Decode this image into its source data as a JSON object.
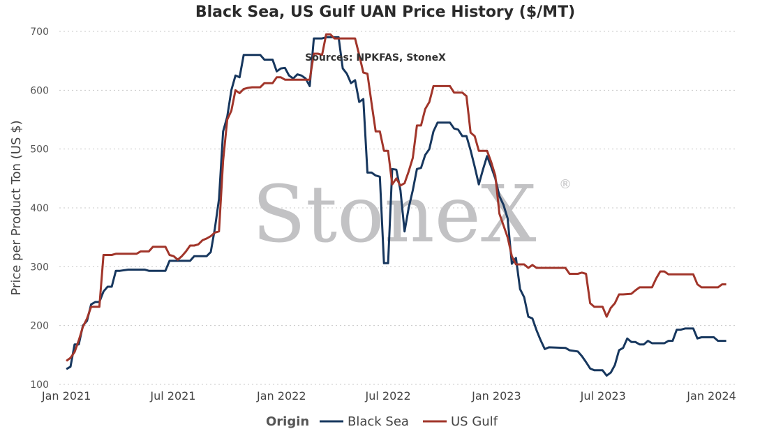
{
  "chart_data": {
    "type": "line",
    "title": "Black Sea, US Gulf UAN Price History ($/MT)",
    "subtitle": "Sources: NPKFAS, StoneX",
    "ylabel": "Price per Product Ton (US $)",
    "xlabel": "",
    "ylim": [
      100,
      700
    ],
    "yticks": [
      100,
      200,
      300,
      400,
      500,
      600,
      700
    ],
    "xlim": [
      "2020-12-20",
      "2024-02-12"
    ],
    "xticks": [
      {
        "date": "2021-01-01",
        "label": "Jan 2021"
      },
      {
        "date": "2021-07-01",
        "label": "Jul 2021"
      },
      {
        "date": "2022-01-01",
        "label": "Jan 2022"
      },
      {
        "date": "2022-07-01",
        "label": "Jul 2022"
      },
      {
        "date": "2023-01-01",
        "label": "Jan 2023"
      },
      {
        "date": "2023-07-01",
        "label": "Jul 2023"
      },
      {
        "date": "2024-01-01",
        "label": "Jan 2024"
      }
    ],
    "grid": "horizontal dotted",
    "legend_title": "Origin",
    "legend_position": "bottom",
    "watermark": "StoneX",
    "watermark_mark": "®",
    "series": [
      {
        "name": "Black Sea",
        "color": "#17375e",
        "points": [
          [
            "2021-01-01",
            126
          ],
          [
            "2021-01-08",
            130
          ],
          [
            "2021-01-15",
            168
          ],
          [
            "2021-01-22",
            168
          ],
          [
            "2021-01-29",
            200
          ],
          [
            "2021-02-05",
            208
          ],
          [
            "2021-02-12",
            236
          ],
          [
            "2021-02-19",
            240
          ],
          [
            "2021-02-26",
            240
          ],
          [
            "2021-03-05",
            258
          ],
          [
            "2021-03-12",
            266
          ],
          [
            "2021-03-19",
            266
          ],
          [
            "2021-03-26",
            293
          ],
          [
            "2021-04-02",
            293
          ],
          [
            "2021-04-16",
            295
          ],
          [
            "2021-05-14",
            295
          ],
          [
            "2021-05-21",
            293
          ],
          [
            "2021-06-18",
            293
          ],
          [
            "2021-06-25",
            310
          ],
          [
            "2021-07-02",
            310
          ],
          [
            "2021-07-09",
            310
          ],
          [
            "2021-07-30",
            310
          ],
          [
            "2021-08-06",
            318
          ],
          [
            "2021-08-27",
            318
          ],
          [
            "2021-09-03",
            325
          ],
          [
            "2021-09-10",
            365
          ],
          [
            "2021-09-17",
            415
          ],
          [
            "2021-09-24",
            530
          ],
          [
            "2021-10-01",
            555
          ],
          [
            "2021-10-08",
            600
          ],
          [
            "2021-10-15",
            625
          ],
          [
            "2021-10-22",
            622
          ],
          [
            "2021-10-29",
            660
          ],
          [
            "2021-11-26",
            660
          ],
          [
            "2021-12-03",
            652
          ],
          [
            "2021-12-17",
            652
          ],
          [
            "2021-12-24",
            632
          ],
          [
            "2021-12-31",
            637
          ],
          [
            "2022-01-07",
            638
          ],
          [
            "2022-01-14",
            625
          ],
          [
            "2022-01-21",
            620
          ],
          [
            "2022-01-28",
            627
          ],
          [
            "2022-02-04",
            625
          ],
          [
            "2022-02-11",
            620
          ],
          [
            "2022-02-18",
            607
          ],
          [
            "2022-02-25",
            688
          ],
          [
            "2022-03-11",
            688
          ],
          [
            "2022-03-18",
            690
          ],
          [
            "2022-04-08",
            690
          ],
          [
            "2022-04-15",
            637
          ],
          [
            "2022-04-22",
            628
          ],
          [
            "2022-04-29",
            612
          ],
          [
            "2022-05-06",
            617
          ],
          [
            "2022-05-13",
            580
          ],
          [
            "2022-05-20",
            585
          ],
          [
            "2022-05-27",
            460
          ],
          [
            "2022-06-03",
            460
          ],
          [
            "2022-06-10",
            455
          ],
          [
            "2022-06-17",
            453
          ],
          [
            "2022-06-24",
            306
          ],
          [
            "2022-07-01",
            306
          ],
          [
            "2022-07-08",
            466
          ],
          [
            "2022-07-15",
            465
          ],
          [
            "2022-07-22",
            430
          ],
          [
            "2022-07-29",
            360
          ],
          [
            "2022-08-05",
            400
          ],
          [
            "2022-08-12",
            430
          ],
          [
            "2022-08-19",
            466
          ],
          [
            "2022-08-26",
            468
          ],
          [
            "2022-09-02",
            490
          ],
          [
            "2022-09-09",
            500
          ],
          [
            "2022-09-16",
            530
          ],
          [
            "2022-09-23",
            545
          ],
          [
            "2022-10-14",
            545
          ],
          [
            "2022-10-21",
            535
          ],
          [
            "2022-10-28",
            533
          ],
          [
            "2022-11-04",
            522
          ],
          [
            "2022-11-11",
            522
          ],
          [
            "2022-11-18",
            498
          ],
          [
            "2022-11-25",
            470
          ],
          [
            "2022-12-02",
            440
          ],
          [
            "2022-12-09",
            465
          ],
          [
            "2022-12-16",
            488
          ],
          [
            "2022-12-23",
            470
          ],
          [
            "2022-12-30",
            450
          ],
          [
            "2023-01-06",
            420
          ],
          [
            "2023-01-13",
            405
          ],
          [
            "2023-01-20",
            382
          ],
          [
            "2023-01-27",
            305
          ],
          [
            "2023-02-03",
            315
          ],
          [
            "2023-02-10",
            262
          ],
          [
            "2023-02-17",
            248
          ],
          [
            "2023-02-24",
            215
          ],
          [
            "2023-03-03",
            212
          ],
          [
            "2023-03-10",
            192
          ],
          [
            "2023-03-17",
            175
          ],
          [
            "2023-03-24",
            160
          ],
          [
            "2023-03-31",
            163
          ],
          [
            "2023-04-28",
            162
          ],
          [
            "2023-05-05",
            158
          ],
          [
            "2023-05-19",
            156
          ],
          [
            "2023-05-26",
            148
          ],
          [
            "2023-06-02",
            138
          ],
          [
            "2023-06-09",
            127
          ],
          [
            "2023-06-16",
            124
          ],
          [
            "2023-06-30",
            124
          ],
          [
            "2023-07-07",
            115
          ],
          [
            "2023-07-14",
            120
          ],
          [
            "2023-07-21",
            133
          ],
          [
            "2023-07-28",
            158
          ],
          [
            "2023-08-04",
            162
          ],
          [
            "2023-08-11",
            178
          ],
          [
            "2023-08-18",
            172
          ],
          [
            "2023-08-25",
            172
          ],
          [
            "2023-09-01",
            168
          ],
          [
            "2023-09-08",
            168
          ],
          [
            "2023-09-15",
            174
          ],
          [
            "2023-09-22",
            170
          ],
          [
            "2023-10-06",
            170
          ],
          [
            "2023-10-13",
            170
          ],
          [
            "2023-10-20",
            174
          ],
          [
            "2023-10-27",
            174
          ],
          [
            "2023-11-03",
            193
          ],
          [
            "2023-11-10",
            193
          ],
          [
            "2023-11-17",
            195
          ],
          [
            "2023-12-01",
            195
          ],
          [
            "2023-12-08",
            178
          ],
          [
            "2023-12-15",
            180
          ],
          [
            "2024-01-05",
            180
          ],
          [
            "2024-01-12",
            174
          ],
          [
            "2024-01-26",
            174
          ]
        ]
      },
      {
        "name": "US Gulf",
        "color": "#a1352a",
        "points": [
          [
            "2021-01-01",
            140
          ],
          [
            "2021-01-08",
            145
          ],
          [
            "2021-01-15",
            155
          ],
          [
            "2021-01-22",
            175
          ],
          [
            "2021-01-29",
            198
          ],
          [
            "2021-02-05",
            212
          ],
          [
            "2021-02-12",
            232
          ],
          [
            "2021-02-26",
            232
          ],
          [
            "2021-03-05",
            320
          ],
          [
            "2021-03-19",
            320
          ],
          [
            "2021-03-26",
            322
          ],
          [
            "2021-04-30",
            322
          ],
          [
            "2021-05-07",
            326
          ],
          [
            "2021-05-21",
            326
          ],
          [
            "2021-05-28",
            334
          ],
          [
            "2021-06-18",
            334
          ],
          [
            "2021-06-25",
            320
          ],
          [
            "2021-07-02",
            318
          ],
          [
            "2021-07-09",
            312
          ],
          [
            "2021-07-16",
            318
          ],
          [
            "2021-07-23",
            326
          ],
          [
            "2021-07-30",
            336
          ],
          [
            "2021-08-06",
            336
          ],
          [
            "2021-08-13",
            338
          ],
          [
            "2021-08-20",
            345
          ],
          [
            "2021-08-27",
            348
          ],
          [
            "2021-09-03",
            352
          ],
          [
            "2021-09-10",
            358
          ],
          [
            "2021-09-17",
            360
          ],
          [
            "2021-09-24",
            480
          ],
          [
            "2021-10-01",
            550
          ],
          [
            "2021-10-08",
            565
          ],
          [
            "2021-10-15",
            600
          ],
          [
            "2021-10-22",
            595
          ],
          [
            "2021-10-29",
            602
          ],
          [
            "2021-11-05",
            604
          ],
          [
            "2021-11-12",
            605
          ],
          [
            "2021-11-26",
            605
          ],
          [
            "2021-12-03",
            612
          ],
          [
            "2021-12-10",
            612
          ],
          [
            "2021-12-17",
            612
          ],
          [
            "2021-12-24",
            622
          ],
          [
            "2021-12-31",
            622
          ],
          [
            "2022-01-07",
            618
          ],
          [
            "2022-02-18",
            618
          ],
          [
            "2022-02-25",
            662
          ],
          [
            "2022-03-04",
            662
          ],
          [
            "2022-03-11",
            660
          ],
          [
            "2022-03-18",
            695
          ],
          [
            "2022-03-25",
            695
          ],
          [
            "2022-04-01",
            688
          ],
          [
            "2022-05-06",
            688
          ],
          [
            "2022-05-13",
            660
          ],
          [
            "2022-05-20",
            630
          ],
          [
            "2022-05-27",
            628
          ],
          [
            "2022-06-03",
            578
          ],
          [
            "2022-06-10",
            530
          ],
          [
            "2022-06-17",
            530
          ],
          [
            "2022-06-24",
            497
          ],
          [
            "2022-07-01",
            497
          ],
          [
            "2022-07-08",
            440
          ],
          [
            "2022-07-15",
            450
          ],
          [
            "2022-07-22",
            438
          ],
          [
            "2022-07-29",
            442
          ],
          [
            "2022-08-05",
            462
          ],
          [
            "2022-08-12",
            485
          ],
          [
            "2022-08-19",
            540
          ],
          [
            "2022-08-26",
            540
          ],
          [
            "2022-09-02",
            568
          ],
          [
            "2022-09-09",
            580
          ],
          [
            "2022-09-16",
            607
          ],
          [
            "2022-10-07",
            607
          ],
          [
            "2022-10-14",
            607
          ],
          [
            "2022-10-21",
            596
          ],
          [
            "2022-11-04",
            596
          ],
          [
            "2022-11-11",
            590
          ],
          [
            "2022-11-18",
            528
          ],
          [
            "2022-11-25",
            522
          ],
          [
            "2022-12-02",
            497
          ],
          [
            "2022-12-16",
            497
          ],
          [
            "2022-12-23",
            478
          ],
          [
            "2022-12-30",
            455
          ],
          [
            "2023-01-06",
            390
          ],
          [
            "2023-01-13",
            370
          ],
          [
            "2023-01-20",
            350
          ],
          [
            "2023-01-27",
            318
          ],
          [
            "2023-02-03",
            304
          ],
          [
            "2023-02-17",
            304
          ],
          [
            "2023-02-24",
            298
          ],
          [
            "2023-03-03",
            303
          ],
          [
            "2023-03-10",
            298
          ],
          [
            "2023-04-28",
            298
          ],
          [
            "2023-05-05",
            288
          ],
          [
            "2023-05-19",
            288
          ],
          [
            "2023-05-26",
            290
          ],
          [
            "2023-06-02",
            288
          ],
          [
            "2023-06-09",
            238
          ],
          [
            "2023-06-16",
            232
          ],
          [
            "2023-06-30",
            232
          ],
          [
            "2023-07-07",
            215
          ],
          [
            "2023-07-14",
            230
          ],
          [
            "2023-07-21",
            238
          ],
          [
            "2023-07-28",
            253
          ],
          [
            "2023-08-04",
            253
          ],
          [
            "2023-08-18",
            254
          ],
          [
            "2023-08-25",
            260
          ],
          [
            "2023-09-01",
            265
          ],
          [
            "2023-09-22",
            265
          ],
          [
            "2023-09-29",
            280
          ],
          [
            "2023-10-06",
            292
          ],
          [
            "2023-10-13",
            292
          ],
          [
            "2023-10-20",
            287
          ],
          [
            "2023-11-24",
            287
          ],
          [
            "2023-12-01",
            287
          ],
          [
            "2023-12-08",
            270
          ],
          [
            "2023-12-15",
            265
          ],
          [
            "2024-01-12",
            265
          ],
          [
            "2024-01-19",
            270
          ],
          [
            "2024-01-26",
            270
          ]
        ]
      }
    ]
  }
}
